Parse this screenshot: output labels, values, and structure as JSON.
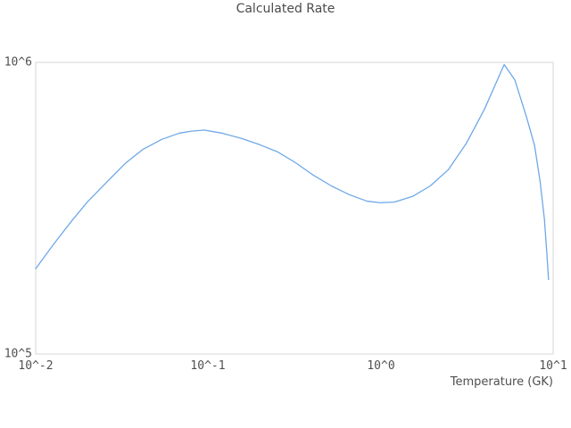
{
  "chart": {
    "title": "Calculated Rate",
    "xlabel": "Temperature (GK)"
  },
  "colors": {
    "line": "#6ea8e8",
    "plot_border": "#d6d6d6",
    "text": "#4f4f4f"
  },
  "chart_data": {
    "type": "line",
    "title": "Calculated Rate",
    "xlabel": "Temperature (GK)",
    "ylabel": "",
    "x_scale": "log",
    "y_scale": "log",
    "xlim": [
      0.01,
      10
    ],
    "ylim": [
      100000,
      1000000
    ],
    "grid": false,
    "legend": false,
    "x_ticks": [
      {
        "value": 0.01,
        "label": "10^-2"
      },
      {
        "value": 0.1,
        "label": "10^-1"
      },
      {
        "value": 1,
        "label": "10^0"
      },
      {
        "value": 10,
        "label": "10^1"
      }
    ],
    "y_ticks": [
      {
        "value": 100000,
        "label": "10^5"
      },
      {
        "value": 1000000,
        "label": "10^6"
      }
    ],
    "series": [
      {
        "name": "Calculated Rate",
        "x": [
          0.01,
          0.0127,
          0.016,
          0.02,
          0.026,
          0.033,
          0.042,
          0.054,
          0.068,
          0.08,
          0.095,
          0.12,
          0.157,
          0.199,
          0.253,
          0.321,
          0.408,
          0.518,
          0.658,
          0.836,
          1.0,
          1.2,
          1.53,
          1.94,
          2.47,
          3.15,
          4.0,
          4.5,
          5.2,
          6.0,
          7.0,
          7.8,
          8.4,
          8.9,
          9.2,
          9.4
        ],
        "y": [
          196000,
          238000,
          284000,
          333000,
          390000,
          450000,
          504000,
          545000,
          572000,
          581000,
          586000,
          572000,
          548000,
          522000,
          493000,
          453000,
          410000,
          377000,
          352000,
          334000,
          330000,
          332000,
          347000,
          377000,
          429000,
          530000,
          692000,
          810000,
          983000,
          870000,
          650000,
          520000,
          390000,
          290000,
          220000,
          180000
        ]
      }
    ]
  }
}
